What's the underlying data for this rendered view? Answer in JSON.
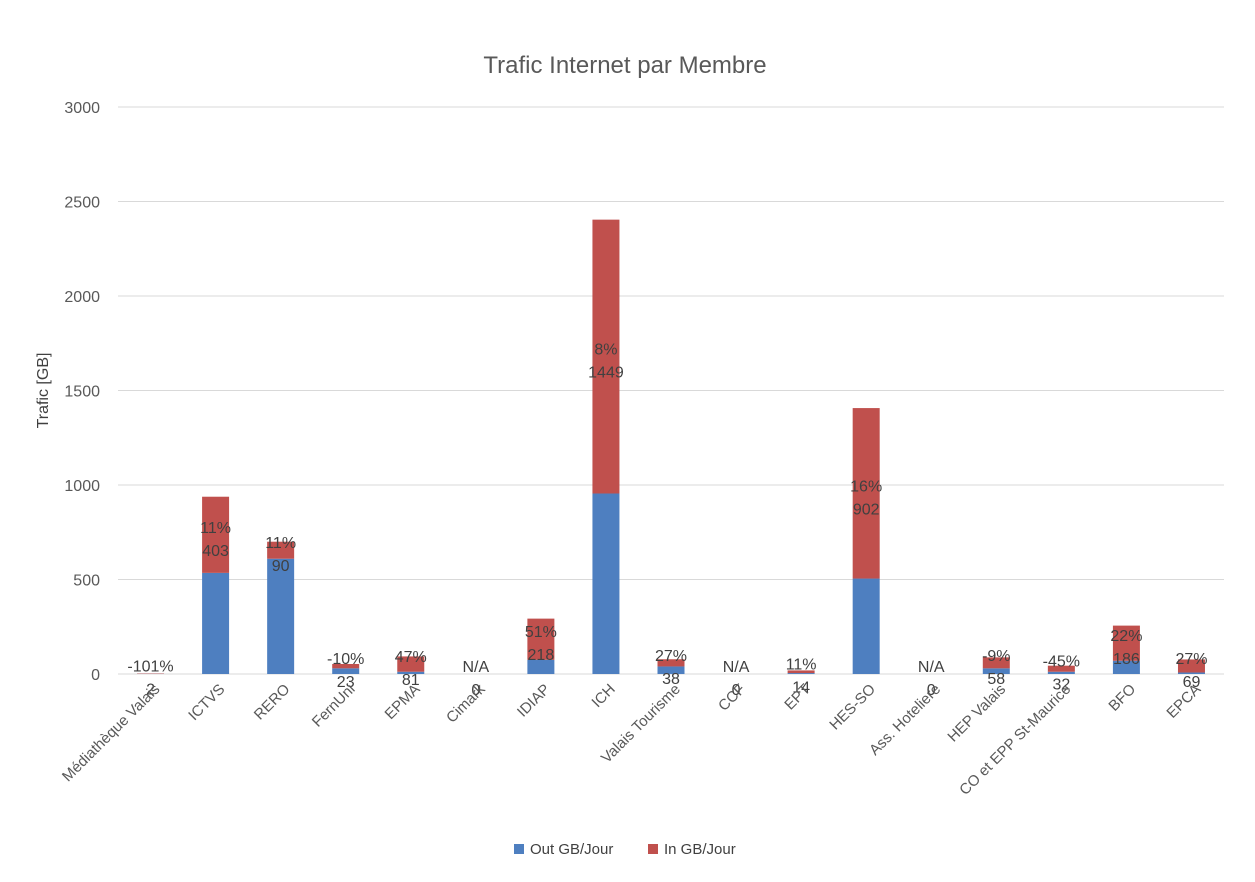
{
  "chart_data": {
    "type": "bar",
    "stacked": true,
    "title": "Trafic Internet par Membre",
    "xlabel": "",
    "ylabel": "Trafic [GB]",
    "ylim": [
      0,
      3000
    ],
    "yticks": [
      0,
      500,
      1000,
      1500,
      2000,
      2500,
      3000
    ],
    "grid": true,
    "legend_position": "bottom",
    "categories": [
      "Médiathèque Valais",
      "ICTVS",
      "RERO",
      "FernUni",
      "EPMA",
      "Cimark",
      "IDIAP",
      "ICH",
      "Valais Tourisme",
      "CCF",
      "EPT",
      "HES-SO",
      "Ass. Hoteliere",
      "HEP Valais",
      "CO et EPP St-Maurice",
      "BFO",
      "EPCA"
    ],
    "series": [
      {
        "name": "Out GB/Jour",
        "color": "#4e7fc0",
        "values": [
          1,
          535,
          610,
          30,
          12,
          0,
          75,
          955,
          40,
          0,
          5,
          505,
          0,
          30,
          12,
          70,
          8
        ]
      },
      {
        "name": "In GB/Jour",
        "color": "#c0504d",
        "values": [
          2,
          403,
          90,
          23,
          81,
          0,
          218,
          1449,
          38,
          0,
          14,
          902,
          0,
          58,
          32,
          186,
          69
        ]
      }
    ],
    "data_labels": {
      "percent": [
        "-101%",
        "11%",
        "11%",
        "-10%",
        "47%",
        "N/A",
        "51%",
        "8%",
        "27%",
        "N/A",
        "11%",
        "16%",
        "N/A",
        "-9%",
        "-45%",
        "22%",
        "27%"
      ],
      "in_value": [
        "2",
        "403",
        "90",
        "23",
        "81",
        "0",
        "218",
        "1449",
        "38",
        "0",
        "14",
        "902",
        "0",
        "58",
        "32",
        "186",
        "69"
      ]
    }
  }
}
